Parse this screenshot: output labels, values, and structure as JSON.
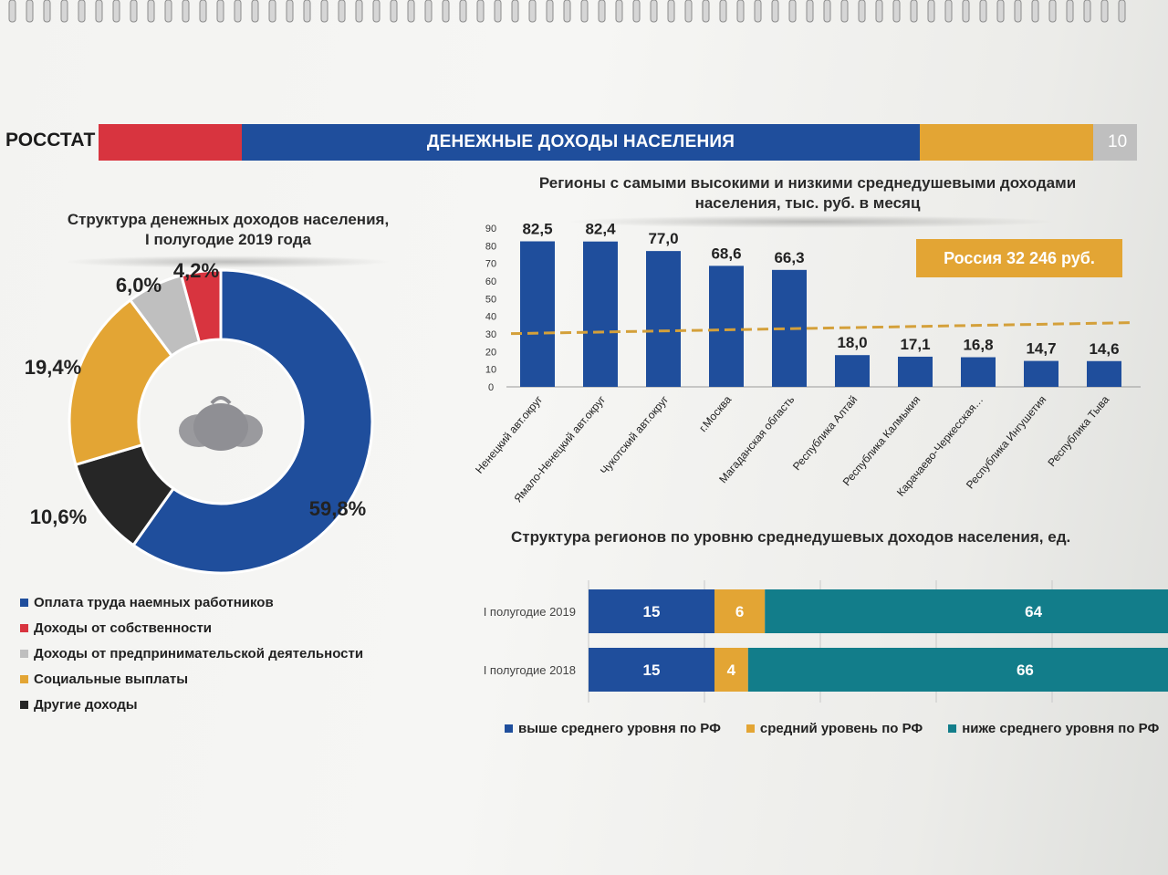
{
  "header": {
    "brand": "РОССТАТ",
    "title": "ДЕНЕЖНЫЕ ДОХОДЫ НАСЕЛЕНИЯ",
    "page_number": "10"
  },
  "colors": {
    "blue": "#1f4e9c",
    "red": "#d8343f",
    "yellow": "#e3a534",
    "grey": "#bfbfbf",
    "dark": "#262626",
    "teal": "#127d8a"
  },
  "icons": [
    "money-bags-icon"
  ],
  "russia_badge": "Россия 32 246 руб.",
  "chart_data": [
    {
      "type": "pie",
      "title": "Структура денежных доходов населения, I полугодие 2019 года",
      "labels": [
        "Оплата труда наемных работников",
        "Другие доходы",
        "Социальные выплаты",
        "Доходы от предпринимательской деятельности",
        "Доходы от собственности"
      ],
      "values": [
        59.8,
        10.6,
        19.4,
        6.0,
        4.2
      ],
      "value_labels": [
        "59,8%",
        "10,6%",
        "19,4%",
        "6,0%",
        "4,2%"
      ],
      "colors": [
        "#1f4e9c",
        "#262626",
        "#e3a534",
        "#bfbfbf",
        "#d8343f"
      ],
      "legend": [
        {
          "label": "Оплата труда наемных работников",
          "color": "#1f4e9c"
        },
        {
          "label": "Доходы от собственности",
          "color": "#d8343f"
        },
        {
          "label": "Доходы от предпринимательской деятельности",
          "color": "#bfbfbf"
        },
        {
          "label": "Социальные выплаты",
          "color": "#e3a534"
        },
        {
          "label": "Другие доходы",
          "color": "#262626"
        }
      ],
      "legend_position": "bottom"
    },
    {
      "type": "bar",
      "title": "Регионы с самыми высокими и низкими среднедушевыми доходами населения, тыс. руб. в месяц",
      "categories": [
        "Ненецкий авт.округ",
        "Ямало-Ненецкий авт.округ",
        "Чукотский  авт.округ",
        "г.Москва",
        "Магаданская область",
        "Республика Алтай",
        "Республика Калмыкия",
        "Карачаево-Черкесская…",
        "Республика Ингушетия",
        "Республика Тыва"
      ],
      "values": [
        82.5,
        82.4,
        77.0,
        68.6,
        66.3,
        18.0,
        17.1,
        16.8,
        14.7,
        14.6
      ],
      "value_labels": [
        "82,5",
        "82,4",
        "77,0",
        "68,6",
        "66,3",
        "18,0",
        "17,1",
        "16,8",
        "14,7",
        "14,6"
      ],
      "yticks": [
        "0",
        "10",
        "20",
        "30",
        "40",
        "50",
        "60",
        "70",
        "80",
        "90"
      ],
      "ylim": [
        0,
        90
      ],
      "reference_line": {
        "value": 32.246
      },
      "color": "#1f4e9c",
      "grid": false
    },
    {
      "type": "bar",
      "orientation": "horizontal-stacked",
      "title": "Структура регионов по уровню среднедушевых доходов населения, ед.",
      "categories": [
        "I полугодие 2019",
        "I полугодие 2018"
      ],
      "series": [
        {
          "name": "выше среднего уровня по РФ",
          "values": [
            15,
            15
          ],
          "color": "#1f4e9c"
        },
        {
          "name": "средний уровень по РФ",
          "values": [
            6,
            4
          ],
          "color": "#e3a534"
        },
        {
          "name": "ниже среднего уровня по РФ",
          "values": [
            64,
            66
          ],
          "color": "#127d8a"
        }
      ],
      "grid": true,
      "legend_position": "bottom"
    }
  ]
}
